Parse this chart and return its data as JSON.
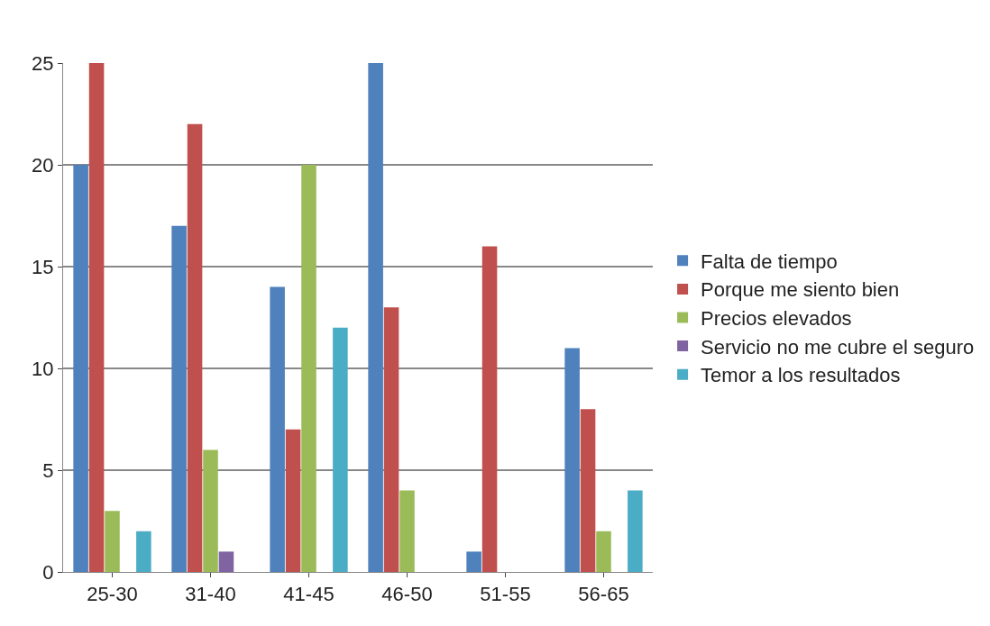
{
  "chart_data": {
    "type": "bar",
    "categories": [
      "25-30",
      "31-40",
      "41-45",
      "46-50",
      "51-55",
      "56-65"
    ],
    "series": [
      {
        "name": "Falta de tiempo",
        "color": "#4f81bd",
        "values": [
          20,
          17,
          14,
          25,
          1,
          11
        ]
      },
      {
        "name": "Porque me siento bien",
        "color": "#c0504d",
        "values": [
          25,
          22,
          7,
          13,
          16,
          8
        ]
      },
      {
        "name": "Precios elevados",
        "color": "#9bbb59",
        "values": [
          3,
          6,
          20,
          4,
          0,
          2
        ]
      },
      {
        "name": "Servicio no me cubre el seguro",
        "color": "#8064a2",
        "values": [
          0,
          1,
          0,
          0,
          0,
          0
        ]
      },
      {
        "name": "Temor a los resultados",
        "color": "#4bacc6",
        "values": [
          2,
          0,
          12,
          0,
          0,
          4
        ]
      }
    ],
    "ylim": [
      0,
      25
    ],
    "yticks": [
      0,
      5,
      10,
      15,
      20,
      25
    ],
    "grid": "y",
    "legend": "right"
  }
}
